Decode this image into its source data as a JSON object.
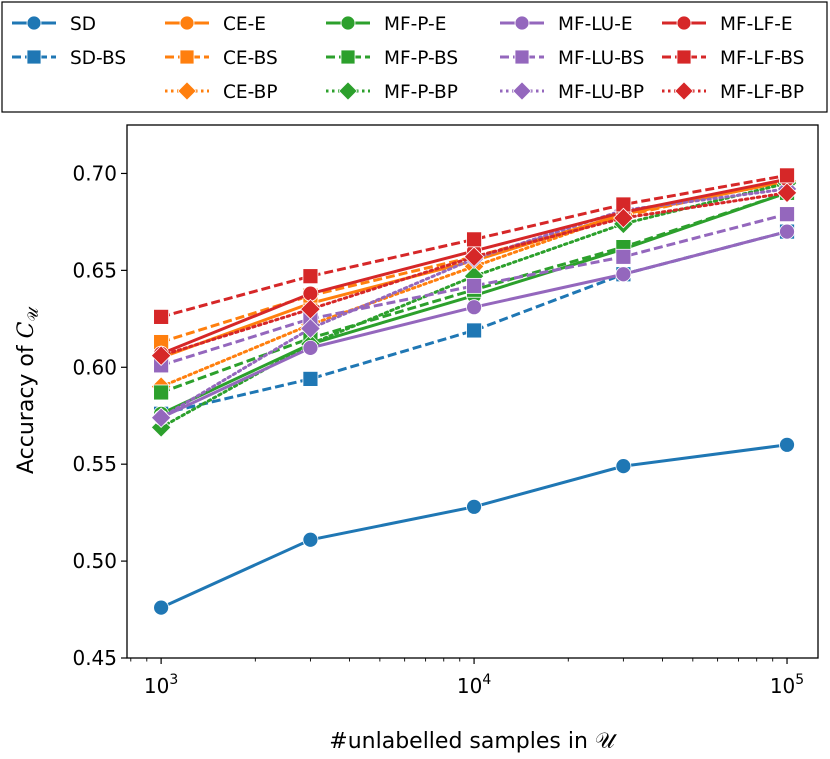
{
  "chart_data": {
    "type": "line",
    "xlabel": "#unlabelled samples in 𝒰",
    "ylabel_prefix": "Accuracy of ",
    "ylabel_symbol": "C",
    "ylabel_subscript": "𝒰",
    "xscale": "log",
    "xlim": [
      778,
      125600
    ],
    "ylim": [
      0.45,
      0.725
    ],
    "xticks": [
      {
        "base": "10",
        "exp": "3",
        "value": 1000
      },
      {
        "base": "10",
        "exp": "4",
        "value": 10000
      },
      {
        "base": "10",
        "exp": "5",
        "value": 100000
      }
    ],
    "yticks": [
      "0.45",
      "0.50",
      "0.55",
      "0.60",
      "0.65",
      "0.70"
    ],
    "grid": false,
    "legend_position": "top (above plot)",
    "x": [
      1000,
      3000,
      10000,
      30000,
      100000
    ],
    "series": [
      {
        "name": "SD",
        "color": "#1f77b4",
        "style": "solid",
        "marker": "circle",
        "values": [
          0.476,
          0.511,
          0.528,
          0.549,
          0.56
        ]
      },
      {
        "name": "SD-BS",
        "color": "#1f77b4",
        "style": "dashed",
        "marker": "square",
        "values": [
          0.576,
          0.594,
          0.619,
          0.648,
          0.67
        ]
      },
      {
        "name": "CE-E",
        "color": "#ff7f0e",
        "style": "solid",
        "marker": "circle",
        "values": [
          0.605,
          0.633,
          0.655,
          0.679,
          0.696
        ]
      },
      {
        "name": "CE-BS",
        "color": "#ff7f0e",
        "style": "dashed",
        "marker": "square",
        "values": [
          0.613,
          0.637,
          0.657,
          0.678,
          0.697
        ]
      },
      {
        "name": "CE-BP",
        "color": "#ff7f0e",
        "style": "dotted",
        "marker": "diamond",
        "values": [
          0.59,
          0.622,
          0.652,
          0.679,
          0.696
        ]
      },
      {
        "name": "MF-P-E",
        "color": "#2ca02c",
        "style": "solid",
        "marker": "circle",
        "values": [
          0.576,
          0.612,
          0.637,
          0.661,
          0.69
        ]
      },
      {
        "name": "MF-P-BS",
        "color": "#2ca02c",
        "style": "dashed",
        "marker": "square",
        "values": [
          0.587,
          0.615,
          0.64,
          0.662,
          0.69
        ]
      },
      {
        "name": "MF-P-BP",
        "color": "#2ca02c",
        "style": "dotted",
        "marker": "diamond",
        "values": [
          0.569,
          0.612,
          0.647,
          0.674,
          0.695
        ]
      },
      {
        "name": "MF-LU-E",
        "color": "#9467bd",
        "style": "solid",
        "marker": "circle",
        "values": [
          0.574,
          0.61,
          0.631,
          0.648,
          0.67
        ]
      },
      {
        "name": "MF-LU-BS",
        "color": "#9467bd",
        "style": "dashed",
        "marker": "square",
        "values": [
          0.601,
          0.625,
          0.642,
          0.657,
          0.679
        ]
      },
      {
        "name": "MF-LU-BP",
        "color": "#9467bd",
        "style": "dotted",
        "marker": "diamond",
        "values": [
          0.574,
          0.62,
          0.656,
          0.681,
          0.692
        ]
      },
      {
        "name": "MF-LF-E",
        "color": "#d62728",
        "style": "solid",
        "marker": "circle",
        "values": [
          0.607,
          0.638,
          0.66,
          0.68,
          0.697
        ]
      },
      {
        "name": "MF-LF-BS",
        "color": "#d62728",
        "style": "dashed",
        "marker": "square",
        "values": [
          0.626,
          0.647,
          0.666,
          0.684,
          0.699
        ]
      },
      {
        "name": "MF-LF-BP",
        "color": "#d62728",
        "style": "dotted",
        "marker": "diamond",
        "values": [
          0.606,
          0.63,
          0.657,
          0.677,
          0.69
        ]
      }
    ]
  }
}
